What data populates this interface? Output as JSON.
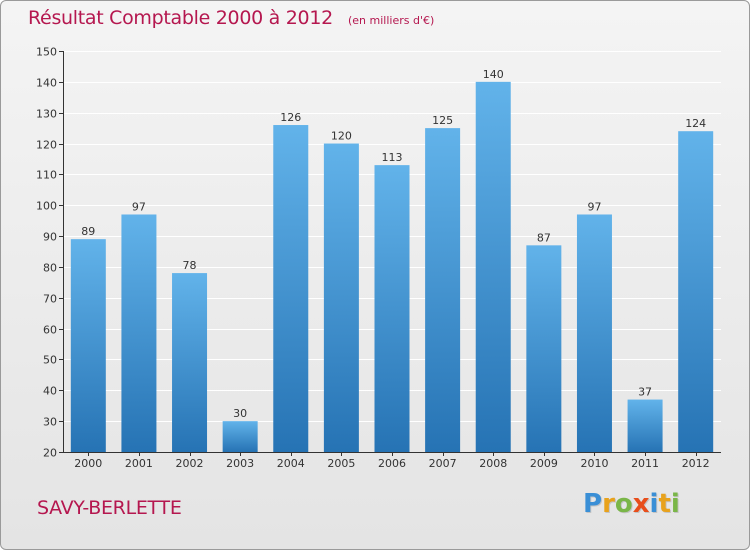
{
  "header": {
    "title": "Résultat Comptable 2000 à 2012",
    "subtitle": "(en milliers d'€)"
  },
  "footer": {
    "commune": "SAVY-BERLETTE",
    "logo_text": "Proxiti",
    "logo_colors": [
      "#3a8fd6",
      "#e8a21c",
      "#7ab648",
      "#e84e1b",
      "#3a8fd6",
      "#e8a21c",
      "#7ab648"
    ]
  },
  "colors": {
    "title": "#b5174f",
    "bar_top": "#62b3ea",
    "bar_bottom": "#2673b4",
    "grid": "#ffffff",
    "axis": "#333333",
    "label": "#333333"
  },
  "chart_data": {
    "type": "bar",
    "categories": [
      "2000",
      "2001",
      "2002",
      "2003",
      "2004",
      "2005",
      "2006",
      "2007",
      "2008",
      "2009",
      "2010",
      "2011",
      "2012"
    ],
    "values": [
      89,
      97,
      78,
      30,
      126,
      120,
      113,
      125,
      140,
      87,
      97,
      37,
      124
    ],
    "title": "Résultat Comptable 2000 à 2012",
    "subtitle": "(en milliers d'€)",
    "xlabel": "",
    "ylabel": "",
    "ylim": [
      20,
      150
    ],
    "yticks": [
      20,
      30,
      40,
      50,
      60,
      70,
      80,
      90,
      100,
      110,
      120,
      130,
      140,
      150
    ],
    "grid": true,
    "data_labels": true
  }
}
